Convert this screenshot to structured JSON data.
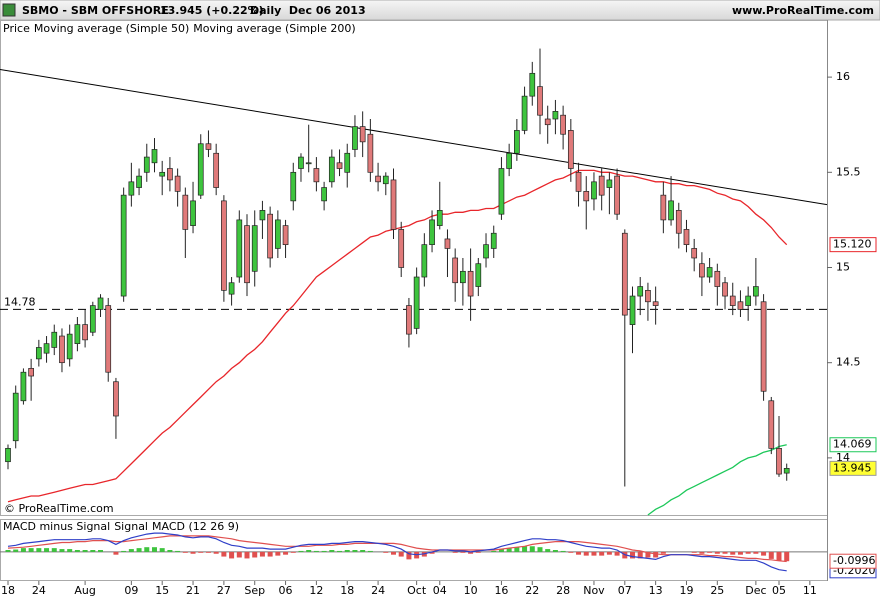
{
  "header": {
    "symbol": "SBMO - SBM OFFSHORE",
    "quote": "13.945 (+0.22%)",
    "period": "Daily  Dec 06 2013",
    "site": "www.ProRealTime.com"
  },
  "chart_data": [
    {
      "type": "candlestick",
      "legend_prefix": "Price",
      "watermark": "© ProRealTime.com",
      "up_color": "#3ec43e",
      "down_color": "#e07a7a",
      "last_color": "#ffff33",
      "categories": [
        "18",
        null,
        null,
        null,
        "24",
        null,
        null,
        null,
        null,
        null,
        "Aug",
        null,
        null,
        null,
        null,
        null,
        "09",
        null,
        null,
        null,
        "15",
        null,
        null,
        null,
        "21",
        null,
        null,
        null,
        "27",
        null,
        null,
        null,
        "Sep",
        null,
        null,
        null,
        "06",
        null,
        null,
        null,
        "12",
        null,
        null,
        null,
        "18",
        null,
        null,
        null,
        "24",
        null,
        null,
        null,
        null,
        "Oct",
        null,
        null,
        "04",
        null,
        null,
        null,
        "10",
        null,
        null,
        null,
        "16",
        null,
        null,
        null,
        "22",
        null,
        null,
        null,
        "28",
        null,
        null,
        null,
        "Nov",
        null,
        null,
        null,
        "07",
        null,
        null,
        null,
        "13",
        null,
        null,
        null,
        "19",
        null,
        null,
        null,
        "25",
        null,
        null,
        null,
        null,
        "Dec",
        null,
        null,
        "05",
        null,
        null,
        null,
        "11"
      ],
      "open": [
        13.98,
        14.09,
        14.3,
        14.47,
        14.52,
        14.55,
        14.58,
        14.64,
        14.52,
        14.6,
        14.7,
        14.66,
        14.78,
        14.8,
        14.4,
        14.85,
        15.38,
        15.42,
        15.5,
        15.55,
        15.48,
        15.52,
        15.48,
        15.38,
        15.22,
        15.38,
        15.65,
        15.6,
        15.35,
        14.86,
        14.95,
        15.22,
        14.98,
        15.25,
        15.28,
        15.1,
        15.22,
        15.35,
        15.52,
        15.55,
        15.52,
        15.35,
        15.45,
        15.55,
        15.5,
        15.62,
        15.74,
        15.7,
        15.48,
        15.44,
        15.46,
        15.2,
        14.8,
        14.68,
        14.95,
        15.12,
        15.22,
        15.15,
        15.05,
        14.92,
        14.98,
        14.9,
        15.05,
        15.1,
        15.28,
        15.52,
        15.6,
        15.72,
        15.9,
        15.95,
        15.78,
        15.78,
        15.8,
        15.72,
        15.5,
        15.4,
        15.36,
        15.48,
        15.42,
        15.48,
        15.18,
        14.7,
        14.85,
        14.88,
        14.82,
        15.38,
        15.25,
        15.3,
        15.2,
        15.1,
        15.02,
        14.95,
        14.98,
        14.92,
        14.85,
        14.82,
        14.8,
        14.85,
        14.82,
        14.3,
        14.05,
        13.92,
        null,
        null,
        null
      ],
      "high": [
        14.07,
        14.38,
        14.47,
        14.52,
        14.62,
        14.64,
        14.7,
        14.68,
        14.7,
        14.74,
        14.78,
        14.82,
        14.86,
        14.84,
        14.42,
        15.42,
        15.55,
        15.52,
        15.65,
        15.68,
        15.56,
        15.58,
        15.52,
        15.42,
        15.45,
        15.7,
        15.72,
        15.65,
        15.38,
        14.95,
        15.3,
        15.28,
        15.3,
        15.35,
        15.32,
        15.3,
        15.25,
        15.55,
        15.6,
        15.75,
        15.58,
        15.45,
        15.62,
        15.62,
        15.65,
        15.8,
        15.82,
        15.78,
        15.55,
        15.5,
        15.52,
        15.24,
        14.84,
        15.0,
        15.18,
        15.3,
        15.45,
        15.2,
        15.1,
        15.05,
        15.1,
        15.05,
        15.18,
        15.22,
        15.58,
        15.65,
        15.78,
        15.95,
        16.08,
        16.15,
        15.85,
        15.88,
        15.85,
        15.78,
        15.55,
        15.48,
        15.5,
        15.52,
        15.5,
        15.52,
        15.2,
        14.9,
        14.95,
        14.92,
        14.9,
        15.45,
        15.48,
        15.34,
        15.25,
        15.15,
        15.08,
        15.05,
        15.02,
        14.95,
        14.92,
        14.88,
        14.9,
        15.05,
        14.86,
        14.32,
        14.22,
        13.97,
        null,
        null,
        null
      ],
      "low": [
        13.94,
        14.05,
        14.28,
        14.3,
        14.48,
        14.5,
        14.54,
        14.45,
        14.48,
        14.56,
        14.58,
        14.64,
        14.74,
        14.4,
        14.1,
        14.82,
        15.32,
        15.38,
        15.45,
        15.5,
        15.38,
        15.4,
        15.32,
        15.05,
        15.18,
        15.36,
        15.58,
        15.38,
        14.82,
        14.8,
        14.92,
        14.85,
        14.9,
        15.15,
        15.0,
        15.05,
        15.05,
        15.3,
        15.45,
        15.5,
        15.4,
        15.3,
        15.42,
        15.48,
        15.42,
        15.58,
        15.58,
        15.45,
        15.4,
        15.38,
        15.15,
        14.95,
        14.58,
        14.65,
        14.9,
        15.08,
        15.2,
        14.95,
        14.82,
        14.8,
        14.72,
        14.85,
        15.0,
        15.05,
        15.25,
        15.48,
        15.56,
        15.7,
        15.85,
        15.7,
        15.65,
        15.7,
        15.62,
        15.45,
        15.32,
        15.2,
        15.3,
        15.3,
        15.28,
        15.25,
        13.85,
        14.55,
        14.75,
        14.72,
        14.7,
        15.18,
        15.22,
        15.1,
        15.08,
        14.98,
        14.85,
        14.92,
        14.8,
        14.78,
        14.75,
        14.74,
        14.72,
        14.8,
        14.3,
        14.02,
        13.9,
        13.88,
        null,
        null,
        null
      ],
      "close": [
        14.05,
        14.34,
        14.45,
        14.43,
        14.58,
        14.6,
        14.66,
        14.5,
        14.65,
        14.7,
        14.62,
        14.8,
        14.84,
        14.45,
        14.22,
        15.38,
        15.45,
        15.48,
        15.58,
        15.62,
        15.5,
        15.46,
        15.4,
        15.2,
        15.35,
        15.65,
        15.62,
        15.42,
        14.88,
        14.92,
        15.25,
        14.92,
        15.22,
        15.3,
        15.05,
        15.25,
        15.12,
        15.5,
        15.58,
        15.55,
        15.45,
        15.42,
        15.58,
        15.52,
        15.6,
        15.74,
        15.66,
        15.5,
        15.45,
        15.48,
        15.2,
        15.0,
        14.65,
        14.95,
        15.12,
        15.25,
        15.3,
        15.1,
        14.92,
        14.98,
        14.85,
        15.02,
        15.12,
        15.18,
        15.52,
        15.6,
        15.72,
        15.9,
        16.02,
        15.8,
        15.75,
        15.82,
        15.7,
        15.52,
        15.4,
        15.35,
        15.45,
        15.38,
        15.46,
        15.28,
        14.75,
        14.85,
        14.9,
        14.82,
        14.8,
        15.25,
        15.35,
        15.18,
        15.12,
        15.05,
        14.95,
        15.0,
        14.9,
        14.85,
        14.8,
        14.78,
        14.85,
        14.9,
        14.35,
        14.05,
        13.915,
        13.945,
        null,
        null,
        null
      ],
      "series": [
        {
          "name": "Moving average (Simple 50)",
          "color": "#e8262b",
          "last_label": "15.120",
          "values": [
            13.77,
            13.78,
            13.79,
            13.8,
            13.8,
            13.81,
            13.82,
            13.83,
            13.84,
            13.85,
            13.86,
            13.86,
            13.87,
            13.88,
            13.89,
            13.93,
            13.97,
            14.01,
            14.05,
            14.09,
            14.13,
            14.16,
            14.2,
            14.24,
            14.28,
            14.32,
            14.36,
            14.4,
            14.43,
            14.47,
            14.5,
            14.54,
            14.57,
            14.61,
            14.66,
            14.71,
            14.76,
            14.8,
            14.85,
            14.9,
            14.95,
            14.98,
            15.01,
            15.04,
            15.07,
            15.1,
            15.13,
            15.16,
            15.17,
            15.19,
            15.2,
            15.21,
            15.22,
            15.24,
            15.25,
            15.27,
            15.28,
            15.28,
            15.29,
            15.29,
            15.3,
            15.3,
            15.31,
            15.31,
            15.33,
            15.35,
            15.37,
            15.38,
            15.4,
            15.42,
            15.44,
            15.46,
            15.47,
            15.49,
            15.51,
            15.51,
            15.51,
            15.5,
            15.5,
            15.49,
            15.48,
            15.48,
            15.47,
            15.46,
            15.45,
            15.45,
            15.44,
            15.44,
            15.43,
            15.43,
            15.42,
            15.41,
            15.39,
            15.38,
            15.36,
            15.35,
            15.32,
            15.28,
            15.25,
            15.21,
            15.16,
            15.12,
            null,
            null,
            null
          ]
        },
        {
          "name": "Moving average (Simple 200)",
          "color": "#1dc85a",
          "values": [
            null,
            null,
            null,
            null,
            null,
            null,
            null,
            null,
            null,
            null,
            null,
            null,
            null,
            null,
            null,
            null,
            null,
            null,
            null,
            null,
            null,
            null,
            null,
            null,
            null,
            null,
            null,
            null,
            null,
            null,
            null,
            null,
            null,
            null,
            null,
            null,
            null,
            null,
            null,
            null,
            null,
            null,
            null,
            null,
            null,
            null,
            null,
            null,
            null,
            null,
            null,
            null,
            null,
            null,
            null,
            null,
            null,
            null,
            null,
            null,
            null,
            null,
            null,
            null,
            null,
            null,
            null,
            null,
            null,
            null,
            null,
            null,
            null,
            null,
            null,
            null,
            null,
            null,
            null,
            null,
            null,
            null,
            null,
            13.7,
            13.73,
            13.75,
            13.78,
            13.8,
            13.83,
            13.85,
            13.87,
            13.89,
            13.91,
            13.93,
            13.95,
            13.98,
            14.0,
            14.01,
            14.03,
            14.04,
            14.06,
            14.069,
            null,
            null,
            null
          ]
        }
      ],
      "ylim": [
        13.7,
        16.3
      ],
      "yticks": [
        14,
        14.5,
        15,
        15.5,
        16
      ],
      "hline": 14.78,
      "trendline": [
        16.04,
        15.33
      ]
    },
    {
      "type": "macd",
      "series": [
        {
          "name": "MACD minus Signal",
          "color": "#3ec43e",
          "negative_color": "#e0504f",
          "values": [
            0.02,
            0.025,
            0.04,
            0.04,
            0.04,
            0.04,
            0.04,
            0.03,
            0.03,
            0.02,
            0.02,
            0.02,
            0.02,
            0.0,
            -0.03,
            0.01,
            0.03,
            0.04,
            0.05,
            0.05,
            0.04,
            0.02,
            0.01,
            -0.01,
            -0.02,
            -0.01,
            -0.01,
            -0.02,
            -0.05,
            -0.07,
            -0.06,
            -0.07,
            -0.06,
            -0.05,
            -0.05,
            -0.04,
            -0.03,
            -0.01,
            0.01,
            0.02,
            0.01,
            0.01,
            0.02,
            0.01,
            0.02,
            0.02,
            0.02,
            0.01,
            0.0,
            -0.01,
            -0.03,
            -0.05,
            -0.08,
            -0.07,
            -0.05,
            -0.02,
            0.0,
            0.0,
            -0.01,
            -0.01,
            -0.02,
            -0.01,
            0.0,
            0.01,
            0.03,
            0.04,
            0.05,
            0.06,
            0.06,
            0.05,
            0.03,
            0.02,
            0.01,
            -0.01,
            -0.03,
            -0.04,
            -0.04,
            -0.04,
            -0.03,
            -0.04,
            -0.07,
            -0.07,
            -0.07,
            -0.06,
            -0.06,
            -0.02,
            0.0,
            0.0,
            0.0,
            -0.01,
            -0.02,
            -0.01,
            -0.02,
            -0.02,
            -0.03,
            -0.03,
            -0.02,
            -0.02,
            -0.04,
            -0.075,
            -0.095,
            -0.0996,
            null,
            null,
            null
          ]
        },
        {
          "name": "Signal",
          "color": "#e0504f",
          "values": [
            0.04,
            0.045,
            0.05,
            0.06,
            0.07,
            0.08,
            0.09,
            0.1,
            0.1,
            0.11,
            0.11,
            0.12,
            0.12,
            0.12,
            0.11,
            0.11,
            0.12,
            0.13,
            0.14,
            0.15,
            0.16,
            0.17,
            0.17,
            0.17,
            0.17,
            0.17,
            0.17,
            0.16,
            0.15,
            0.14,
            0.12,
            0.11,
            0.1,
            0.09,
            0.08,
            0.07,
            0.06,
            0.06,
            0.06,
            0.06,
            0.07,
            0.07,
            0.07,
            0.08,
            0.08,
            0.09,
            0.09,
            0.09,
            0.09,
            0.09,
            0.09,
            0.08,
            0.06,
            0.04,
            0.03,
            0.02,
            0.02,
            0.02,
            0.02,
            0.02,
            0.02,
            0.02,
            0.02,
            0.02,
            0.03,
            0.04,
            0.05,
            0.06,
            0.08,
            0.09,
            0.1,
            0.11,
            0.11,
            0.11,
            0.11,
            0.1,
            0.09,
            0.08,
            0.07,
            0.06,
            0.04,
            0.02,
            0.01,
            -0.01,
            -0.02,
            -0.03,
            -0.03,
            -0.03,
            -0.03,
            -0.03,
            -0.03,
            -0.04,
            -0.04,
            -0.05,
            -0.05,
            -0.06,
            -0.07,
            -0.07,
            -0.08,
            -0.085,
            -0.095,
            -0.1024,
            null,
            null,
            null
          ]
        },
        {
          "name": "MACD (12 26 9)",
          "color": "#2f3fc8",
          "last_label": "-0.2020",
          "values": [
            0.06,
            0.07,
            0.09,
            0.1,
            0.11,
            0.12,
            0.13,
            0.13,
            0.13,
            0.13,
            0.13,
            0.14,
            0.14,
            0.12,
            0.08,
            0.12,
            0.15,
            0.17,
            0.19,
            0.2,
            0.2,
            0.19,
            0.18,
            0.16,
            0.15,
            0.16,
            0.16,
            0.14,
            0.1,
            0.07,
            0.06,
            0.04,
            0.04,
            0.04,
            0.03,
            0.03,
            0.03,
            0.05,
            0.07,
            0.08,
            0.08,
            0.08,
            0.09,
            0.09,
            0.1,
            0.11,
            0.11,
            0.1,
            0.09,
            0.08,
            0.06,
            0.03,
            -0.02,
            -0.03,
            -0.02,
            0.0,
            0.02,
            0.02,
            0.01,
            0.01,
            0.0,
            0.01,
            0.02,
            0.03,
            0.06,
            0.08,
            0.1,
            0.12,
            0.14,
            0.14,
            0.13,
            0.13,
            0.12,
            0.1,
            0.08,
            0.06,
            0.05,
            0.04,
            0.04,
            0.02,
            -0.03,
            -0.05,
            -0.06,
            -0.07,
            -0.08,
            -0.05,
            -0.03,
            -0.03,
            -0.03,
            -0.04,
            -0.05,
            -0.05,
            -0.06,
            -0.07,
            -0.08,
            -0.09,
            -0.09,
            -0.09,
            -0.12,
            -0.16,
            -0.19,
            -0.202,
            null,
            null,
            null
          ]
        }
      ],
      "ylim": [
        -0.3,
        0.34
      ]
    }
  ]
}
